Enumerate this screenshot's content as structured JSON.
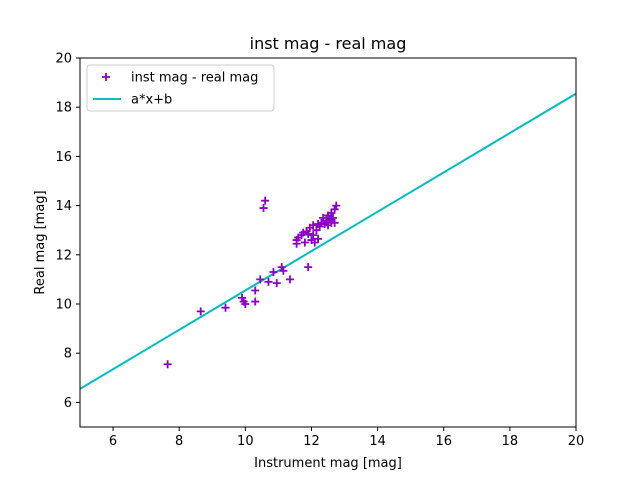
{
  "chart_data": {
    "type": "scatter",
    "title": "inst mag - real mag",
    "xlabel": "Instrument mag [mag]",
    "ylabel": "Real mag [mag]",
    "xlim": [
      5,
      20
    ],
    "ylim": [
      5,
      20
    ],
    "xticks": [
      6,
      8,
      10,
      12,
      14,
      16,
      18,
      20
    ],
    "yticks": [
      6,
      8,
      10,
      12,
      14,
      16,
      18,
      20
    ],
    "grid": false,
    "legend_position": "top-left",
    "series": [
      {
        "name": "inst mag - real mag",
        "kind": "scatter",
        "marker": "plus",
        "color": "#8b00c8",
        "points": [
          [
            7.65,
            7.55
          ],
          [
            8.65,
            9.7
          ],
          [
            9.4,
            9.85
          ],
          [
            9.9,
            10.25
          ],
          [
            9.95,
            10.1
          ],
          [
            10.0,
            10.0
          ],
          [
            10.3,
            10.1
          ],
          [
            10.3,
            10.55
          ],
          [
            10.45,
            11.0
          ],
          [
            10.7,
            10.9
          ],
          [
            10.85,
            11.3
          ],
          [
            10.95,
            10.85
          ],
          [
            11.1,
            11.5
          ],
          [
            11.15,
            11.35
          ],
          [
            11.35,
            11.0
          ],
          [
            11.55,
            12.45
          ],
          [
            11.55,
            12.6
          ],
          [
            11.6,
            12.7
          ],
          [
            11.7,
            12.8
          ],
          [
            11.75,
            12.9
          ],
          [
            11.8,
            12.5
          ],
          [
            11.85,
            12.95
          ],
          [
            11.9,
            11.5
          ],
          [
            11.9,
            12.85
          ],
          [
            11.95,
            13.1
          ],
          [
            12.0,
            12.6
          ],
          [
            12.05,
            12.8
          ],
          [
            12.05,
            13.2
          ],
          [
            12.1,
            12.5
          ],
          [
            12.15,
            13.0
          ],
          [
            12.2,
            12.65
          ],
          [
            12.2,
            13.25
          ],
          [
            12.25,
            13.15
          ],
          [
            12.3,
            13.3
          ],
          [
            12.35,
            13.5
          ],
          [
            12.4,
            13.25
          ],
          [
            12.45,
            13.4
          ],
          [
            12.5,
            13.6
          ],
          [
            12.5,
            13.2
          ],
          [
            12.55,
            13.45
          ],
          [
            12.6,
            13.3
          ],
          [
            12.6,
            13.7
          ],
          [
            12.65,
            13.5
          ],
          [
            12.7,
            13.85
          ],
          [
            12.7,
            13.3
          ],
          [
            12.75,
            14.0
          ],
          [
            10.55,
            13.9
          ],
          [
            10.6,
            14.2
          ]
        ]
      },
      {
        "name": "a*x+b",
        "kind": "line",
        "color": "#00bfbf",
        "points": [
          [
            5,
            6.55
          ],
          [
            20,
            18.55
          ]
        ]
      }
    ]
  }
}
